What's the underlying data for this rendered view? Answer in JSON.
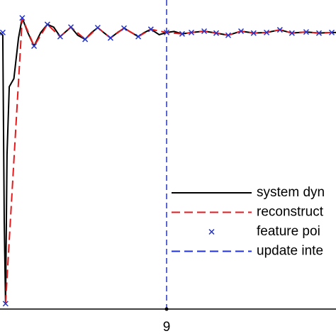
{
  "chart_data": {
    "type": "line",
    "xlim": [
      0,
      18.15
    ],
    "ylim": [
      -0.02,
      1.12
    ],
    "xticks": [
      9
    ],
    "series": [
      {
        "name": "system dyn",
        "color": "#000000",
        "style": "solid",
        "x": [
          0,
          0.15,
          0.23,
          0.3,
          0.38,
          0.5,
          0.75,
          1.0,
          1.2,
          1.5,
          1.84,
          2.2,
          2.56,
          2.9,
          3.25,
          3.83,
          4.2,
          4.6,
          4.95,
          5.28,
          5.6,
          5.97,
          6.35,
          6.7,
          7.1,
          7.47,
          7.8,
          8.15,
          8.6,
          9.0,
          9.4,
          9.84,
          10.34,
          11.03,
          11.68,
          12.33,
          13.02,
          13.7,
          14.4,
          15.12,
          15.77,
          16.54,
          17.23,
          17.92,
          18.15
        ],
        "values": [
          1.0,
          0.99,
          0.3,
          0.0,
          0.55,
          0.8,
          0.83,
          0.98,
          1.054,
          1.0,
          0.95,
          1.0,
          1.03,
          1.02,
          0.985,
          1.02,
          0.99,
          0.975,
          1.0,
          1.018,
          1.0,
          0.98,
          1.0,
          1.016,
          1.0,
          0.985,
          1.0,
          1.012,
          0.992,
          1.0,
          1.004,
          0.995,
          1.0,
          1.005,
          0.998,
          0.99,
          1.005,
          0.998,
          1.0,
          1.01,
          0.998,
          1.002,
          0.998,
          1.0,
          1.0
        ]
      },
      {
        "name": "reconstruct",
        "color": "#e41a1c",
        "style": "dashed",
        "x": [
          0.3,
          1.2,
          1.84,
          2.56,
          3.25,
          3.83,
          4.6,
          5.28,
          5.97,
          6.7,
          7.47,
          8.15,
          9.0,
          9.84,
          10.34,
          11.03,
          11.68,
          12.33,
          13.02,
          13.7,
          14.4,
          15.12,
          15.77,
          16.54,
          17.23,
          17.92
        ],
        "values": [
          0.0,
          1.054,
          0.95,
          1.03,
          0.985,
          1.02,
          0.975,
          1.018,
          0.98,
          1.016,
          0.985,
          1.012,
          1.0,
          0.995,
          1.0,
          1.005,
          0.998,
          0.99,
          1.005,
          0.998,
          1.0,
          1.01,
          0.998,
          1.002,
          0.998,
          1.0
        ]
      },
      {
        "name": "feature poi",
        "color": "#2233cc",
        "style": "markers",
        "x": [
          0.15,
          0.3,
          1.2,
          1.84,
          2.56,
          3.25,
          3.83,
          4.6,
          5.28,
          5.97,
          6.7,
          7.47,
          8.15,
          9.0,
          9.84,
          10.34,
          11.03,
          11.68,
          12.33,
          13.02,
          13.7,
          14.4,
          15.12,
          15.77,
          16.54,
          17.23,
          17.92
        ],
        "values": [
          1.0,
          0.0,
          1.054,
          0.95,
          1.03,
          0.985,
          1.02,
          0.975,
          1.018,
          0.98,
          1.016,
          0.985,
          1.012,
          1.0,
          0.995,
          1.0,
          1.005,
          0.998,
          0.99,
          1.005,
          0.998,
          1.0,
          1.01,
          0.998,
          1.002,
          0.998,
          1.0
        ]
      }
    ],
    "vline": {
      "name": "update inte",
      "color": "#2233cc",
      "x": 9
    }
  }
}
